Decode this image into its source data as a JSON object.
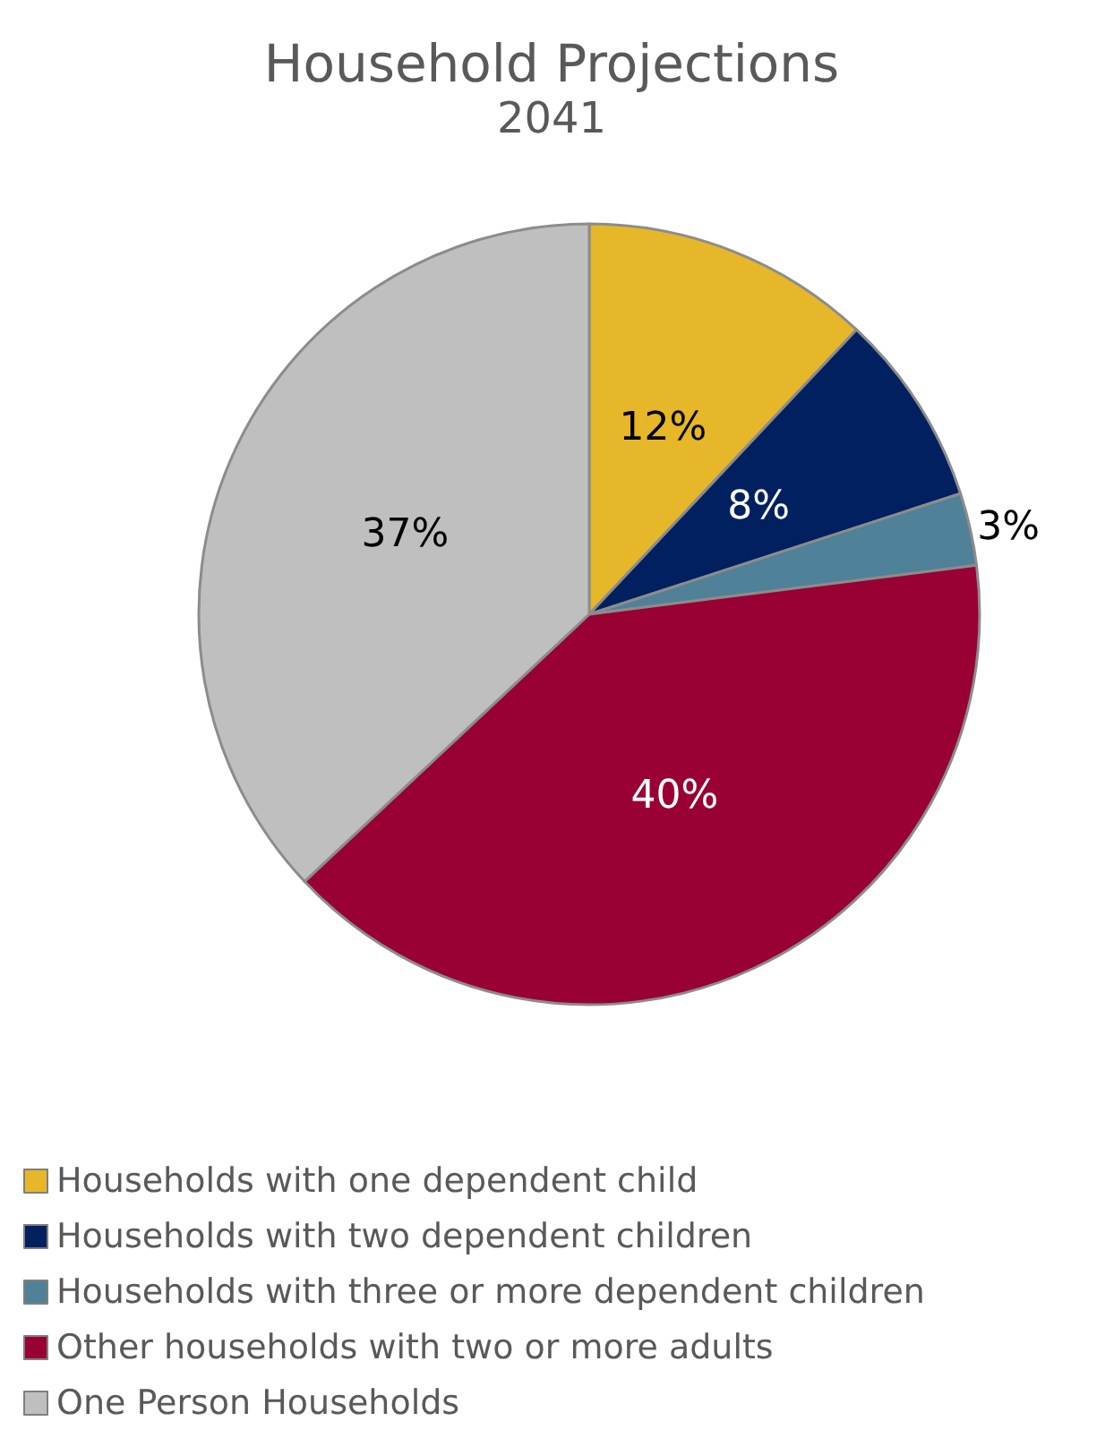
{
  "chart_data": {
    "type": "pie",
    "title": "Household Projections",
    "subtitle": "2041",
    "categories": [
      "Households with one dependent child",
      "Households with two dependent children",
      "Households with three or more dependent children",
      "Other households with two or more adults",
      "One Person Households"
    ],
    "values": [
      12,
      8,
      3,
      40,
      37
    ],
    "colors": [
      "#e6b729",
      "#002060",
      "#4f8198",
      "#990033",
      "#bfbfbf"
    ],
    "value_labels": [
      "12%",
      "8%",
      "3%",
      "40%",
      "37%"
    ],
    "legend": "bottom"
  }
}
